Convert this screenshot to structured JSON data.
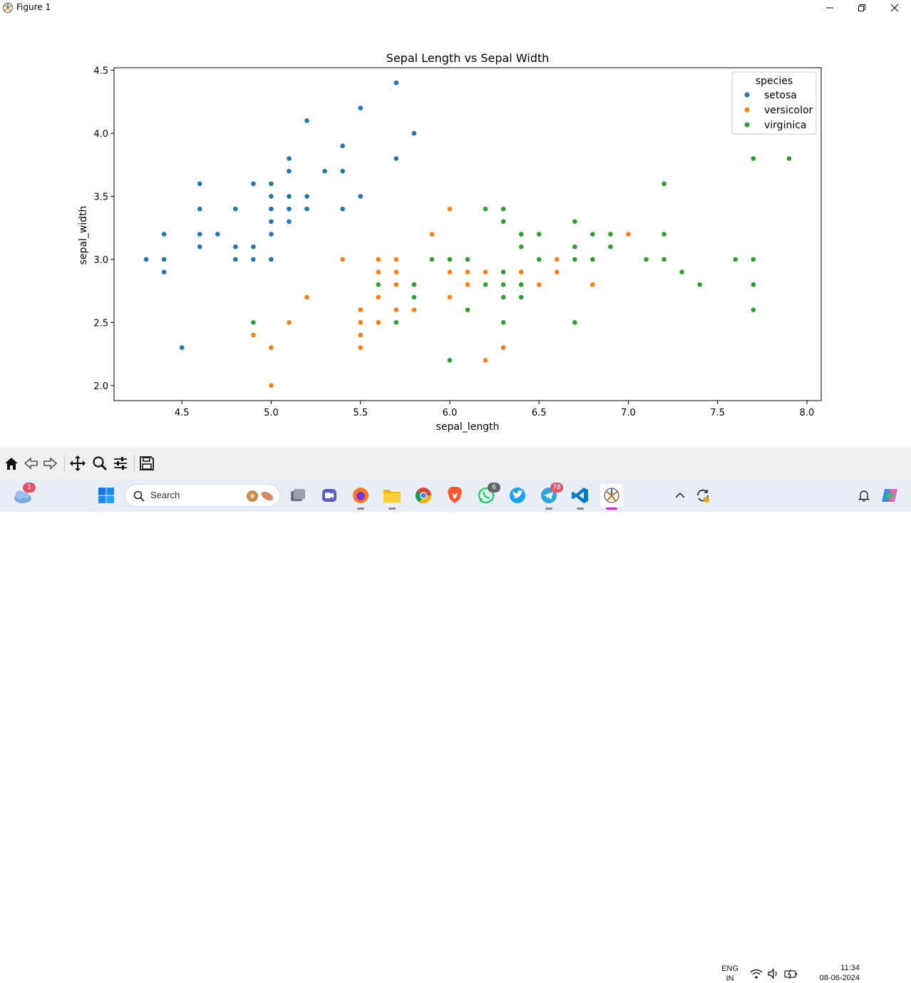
{
  "window": {
    "title": "Figure 1"
  },
  "toolbar": {
    "buttons": [
      "home-icon",
      "back-icon",
      "forward-icon",
      "pan-icon",
      "zoom-icon",
      "configure-subplots-icon",
      "save-icon"
    ]
  },
  "chart_data": {
    "type": "scatter",
    "title": "Sepal Length vs Sepal Width",
    "xlabel": "sepal_length",
    "ylabel": "sepal_width",
    "xlim": [
      4.12,
      8.08
    ],
    "ylim": [
      1.88,
      4.52
    ],
    "xticks": [
      "4.5",
      "5.0",
      "5.5",
      "6.0",
      "6.5",
      "7.0",
      "7.5",
      "8.0"
    ],
    "yticks": [
      "2.0",
      "2.5",
      "3.0",
      "3.5",
      "4.0",
      "4.5"
    ],
    "grid": false,
    "legend": {
      "title": "species",
      "position": "top-right"
    },
    "series": [
      {
        "name": "setosa",
        "color": "#1f77b4",
        "points": [
          [
            5.1,
            3.5
          ],
          [
            4.9,
            3.0
          ],
          [
            4.7,
            3.2
          ],
          [
            4.6,
            3.1
          ],
          [
            5.0,
            3.6
          ],
          [
            5.4,
            3.9
          ],
          [
            4.6,
            3.4
          ],
          [
            5.0,
            3.4
          ],
          [
            4.4,
            2.9
          ],
          [
            4.9,
            3.1
          ],
          [
            5.4,
            3.7
          ],
          [
            4.8,
            3.4
          ],
          [
            4.8,
            3.0
          ],
          [
            4.3,
            3.0
          ],
          [
            5.8,
            4.0
          ],
          [
            5.7,
            4.4
          ],
          [
            5.4,
            3.9
          ],
          [
            5.1,
            3.5
          ],
          [
            5.7,
            3.8
          ],
          [
            5.1,
            3.8
          ],
          [
            5.4,
            3.4
          ],
          [
            5.1,
            3.7
          ],
          [
            4.6,
            3.6
          ],
          [
            5.1,
            3.3
          ],
          [
            4.8,
            3.4
          ],
          [
            5.0,
            3.0
          ],
          [
            5.0,
            3.4
          ],
          [
            5.2,
            3.5
          ],
          [
            5.2,
            3.4
          ],
          [
            4.7,
            3.2
          ],
          [
            4.8,
            3.1
          ],
          [
            5.4,
            3.4
          ],
          [
            5.2,
            4.1
          ],
          [
            5.5,
            4.2
          ],
          [
            4.9,
            3.1
          ],
          [
            5.0,
            3.2
          ],
          [
            5.5,
            3.5
          ],
          [
            4.9,
            3.6
          ],
          [
            4.4,
            3.0
          ],
          [
            5.1,
            3.4
          ],
          [
            5.0,
            3.5
          ],
          [
            4.5,
            2.3
          ],
          [
            4.4,
            3.2
          ],
          [
            5.0,
            3.5
          ],
          [
            5.1,
            3.8
          ],
          [
            4.8,
            3.0
          ],
          [
            5.1,
            3.8
          ],
          [
            4.6,
            3.2
          ],
          [
            5.3,
            3.7
          ],
          [
            5.0,
            3.3
          ]
        ]
      },
      {
        "name": "versicolor",
        "color": "#ff7f0e",
        "points": [
          [
            7.0,
            3.2
          ],
          [
            6.4,
            3.2
          ],
          [
            6.9,
            3.1
          ],
          [
            5.5,
            2.3
          ],
          [
            6.5,
            2.8
          ],
          [
            5.7,
            2.8
          ],
          [
            6.3,
            3.3
          ],
          [
            4.9,
            2.4
          ],
          [
            6.6,
            2.9
          ],
          [
            5.2,
            2.7
          ],
          [
            5.0,
            2.0
          ],
          [
            5.9,
            3.0
          ],
          [
            6.0,
            2.2
          ],
          [
            6.1,
            2.9
          ],
          [
            5.6,
            2.9
          ],
          [
            6.7,
            3.1
          ],
          [
            5.6,
            3.0
          ],
          [
            5.8,
            2.7
          ],
          [
            6.2,
            2.2
          ],
          [
            5.6,
            2.5
          ],
          [
            5.9,
            3.2
          ],
          [
            6.1,
            2.8
          ],
          [
            6.3,
            2.5
          ],
          [
            6.1,
            2.8
          ],
          [
            6.4,
            2.9
          ],
          [
            6.6,
            3.0
          ],
          [
            6.8,
            2.8
          ],
          [
            6.7,
            3.0
          ],
          [
            6.0,
            2.9
          ],
          [
            5.7,
            2.6
          ],
          [
            5.5,
            2.4
          ],
          [
            5.5,
            2.4
          ],
          [
            5.8,
            2.7
          ],
          [
            6.0,
            2.7
          ],
          [
            5.4,
            3.0
          ],
          [
            6.0,
            3.4
          ],
          [
            6.7,
            3.1
          ],
          [
            6.3,
            2.3
          ],
          [
            5.6,
            3.0
          ],
          [
            5.5,
            2.5
          ],
          [
            5.5,
            2.6
          ],
          [
            6.1,
            3.0
          ],
          [
            5.8,
            2.6
          ],
          [
            5.0,
            2.3
          ],
          [
            5.6,
            2.7
          ],
          [
            5.7,
            3.0
          ],
          [
            5.7,
            2.9
          ],
          [
            6.2,
            2.9
          ],
          [
            5.1,
            2.5
          ],
          [
            5.7,
            2.8
          ]
        ]
      },
      {
        "name": "virginica",
        "color": "#2ca02c",
        "points": [
          [
            6.3,
            3.3
          ],
          [
            5.8,
            2.7
          ],
          [
            7.1,
            3.0
          ],
          [
            6.3,
            2.9
          ],
          [
            6.5,
            3.0
          ],
          [
            7.6,
            3.0
          ],
          [
            4.9,
            2.5
          ],
          [
            7.3,
            2.9
          ],
          [
            6.7,
            2.5
          ],
          [
            7.2,
            3.6
          ],
          [
            6.5,
            3.2
          ],
          [
            6.4,
            2.7
          ],
          [
            6.8,
            3.0
          ],
          [
            5.7,
            2.5
          ],
          [
            5.8,
            2.8
          ],
          [
            6.4,
            3.2
          ],
          [
            6.5,
            3.0
          ],
          [
            7.7,
            3.8
          ],
          [
            7.7,
            2.6
          ],
          [
            6.0,
            2.2
          ],
          [
            6.9,
            3.2
          ],
          [
            5.6,
            2.8
          ],
          [
            7.7,
            2.8
          ],
          [
            6.3,
            2.7
          ],
          [
            6.7,
            3.3
          ],
          [
            7.2,
            3.2
          ],
          [
            6.2,
            2.8
          ],
          [
            6.1,
            3.0
          ],
          [
            6.4,
            2.8
          ],
          [
            7.2,
            3.0
          ],
          [
            7.4,
            2.8
          ],
          [
            7.9,
            3.8
          ],
          [
            6.4,
            2.8
          ],
          [
            6.3,
            2.8
          ],
          [
            6.1,
            2.6
          ],
          [
            7.7,
            3.0
          ],
          [
            6.3,
            3.4
          ],
          [
            6.4,
            3.1
          ],
          [
            6.0,
            3.0
          ],
          [
            6.9,
            3.1
          ],
          [
            6.7,
            3.1
          ],
          [
            6.9,
            3.1
          ],
          [
            5.8,
            2.7
          ],
          [
            6.8,
            3.2
          ],
          [
            6.7,
            3.3
          ],
          [
            6.7,
            3.0
          ],
          [
            6.3,
            2.5
          ],
          [
            6.5,
            3.0
          ],
          [
            6.2,
            3.4
          ],
          [
            5.9,
            3.0
          ]
        ]
      }
    ]
  },
  "taskbar": {
    "search_label": "Search",
    "weather_badge": "1",
    "whatsapp_badge": "6",
    "telegram_badge": "78",
    "language_line1": "ENG",
    "language_line2": "IN",
    "time": "11:34",
    "date": "08-06-2024"
  }
}
